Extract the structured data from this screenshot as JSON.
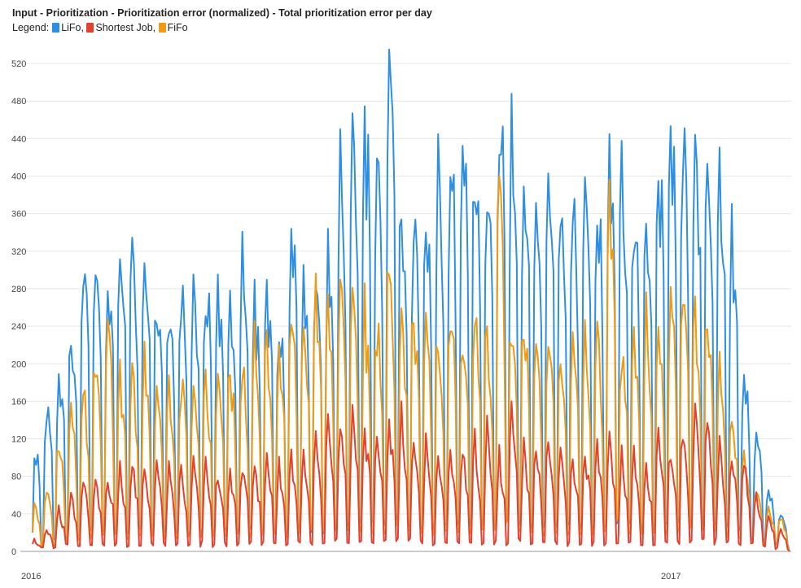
{
  "title": "Input - Prioritization - Prioritization error (normalized) - Total prioritization error per day",
  "legend_prefix": "Legend:",
  "chart_data": {
    "type": "line",
    "title": "Input - Prioritization - Prioritization error (normalized) - Total prioritization error per day",
    "xlabel": "",
    "ylabel": "",
    "x_range": [
      "2016-01-01",
      "2017-03-10"
    ],
    "x_ticks": [
      {
        "date": "2016-01-01",
        "label": "2016"
      },
      {
        "date": "2017-01-01",
        "label": "2017"
      }
    ],
    "ylim": [
      0,
      540
    ],
    "y_ticks": [
      0,
      40,
      80,
      120,
      160,
      200,
      240,
      280,
      320,
      360,
      400,
      440,
      480,
      520
    ],
    "grid": true,
    "legend_position": "top-left",
    "series": [
      {
        "name": "LiFo",
        "color": "#2e8fe2",
        "weekly_profile": [
          0.8,
          1.0,
          0.9,
          0.86,
          0.68,
          0.06,
          0.07
        ],
        "weekly_peak": [
          105,
          150,
          190,
          230,
          290,
          300,
          280,
          310,
          320,
          300,
          285,
          270,
          280,
          260,
          290,
          280,
          285,
          300,
          265,
          270,
          250,
          340,
          290,
          270,
          310,
          400,
          420,
          460,
          415,
          500,
          380,
          345,
          365,
          400,
          415,
          430,
          405,
          390,
          480,
          440,
          395,
          380,
          390,
          375,
          370,
          360,
          380,
          390,
          400,
          340,
          360,
          420,
          440,
          450,
          420,
          410,
          400,
          330,
          180,
          120,
          60,
          40,
          20
        ],
        "point_count": 434,
        "peak_max": 535
      },
      {
        "name": "Shortest Job",
        "color": "#e3402f",
        "weekly_profile": [
          0.75,
          1.0,
          0.8,
          0.66,
          0.52,
          0.05,
          0.06
        ],
        "weekly_peak": [
          12,
          25,
          45,
          60,
          75,
          80,
          85,
          90,
          100,
          95,
          90,
          85,
          90,
          95,
          90,
          85,
          90,
          95,
          95,
          100,
          90,
          110,
          110,
          120,
          130,
          140,
          150,
          140,
          130,
          145,
          150,
          120,
          110,
          100,
          100,
          110,
          120,
          130,
          100,
          160,
          110,
          110,
          120,
          105,
          100,
          110,
          105,
          120,
          100,
          100,
          90,
          120,
          110,
          130,
          150,
          140,
          115,
          110,
          100,
          60,
          35,
          25,
          10
        ],
        "point_count": 434,
        "peak_max": 160
      },
      {
        "name": "FiFo",
        "color": "#f29a0f",
        "weekly_profile": [
          0.85,
          1.0,
          0.88,
          0.78,
          0.6,
          0.07,
          0.08
        ],
        "weekly_peak": [
          50,
          70,
          120,
          140,
          170,
          200,
          240,
          180,
          190,
          200,
          175,
          170,
          185,
          175,
          180,
          185,
          190,
          200,
          220,
          230,
          210,
          250,
          260,
          270,
          240,
          280,
          290,
          250,
          240,
          330,
          260,
          250,
          240,
          230,
          260,
          240,
          250,
          240,
          380,
          250,
          245,
          230,
          240,
          225,
          230,
          240,
          230,
          400,
          220,
          235,
          245,
          250,
          270,
          280,
          260,
          250,
          200,
          150,
          100,
          60,
          45,
          35,
          20
        ],
        "point_count": 434,
        "peak_max": 400
      }
    ]
  }
}
